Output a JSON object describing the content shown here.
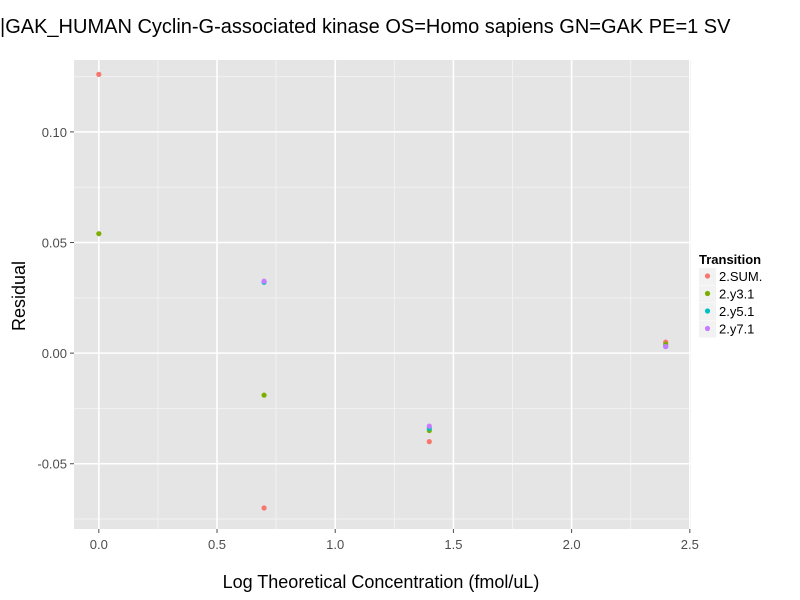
{
  "chart_data": {
    "type": "scatter",
    "title": "|GAK_HUMAN Cyclin-G-associated kinase OS=Homo sapiens GN=GAK PE=1 SV",
    "xlabel": "Log Theoretical Concentration (fmol/uL)",
    "ylabel": "Residual",
    "xlim": [
      -0.105,
      2.505
    ],
    "ylim": [
      -0.0795,
      0.1325
    ],
    "x_ticks": [
      0.0,
      0.5,
      1.0,
      1.5,
      2.0,
      2.5
    ],
    "x_tick_labels": [
      "0.0",
      "0.5",
      "1.0",
      "1.5",
      "2.0",
      "2.5"
    ],
    "y_ticks": [
      -0.05,
      0.0,
      0.05,
      0.1
    ],
    "y_tick_labels": [
      "-0.05",
      "0.00",
      "0.05",
      "0.10"
    ],
    "grid": true,
    "legend": {
      "title": "Transition",
      "placement": "right"
    },
    "series": [
      {
        "name": "2.SUM.",
        "color": "#F8766D",
        "points": [
          {
            "x": 0.0,
            "y": 0.126
          },
          {
            "x": 0.699,
            "y": -0.07
          },
          {
            "x": 1.398,
            "y": -0.04
          },
          {
            "x": 2.398,
            "y": 0.005
          }
        ]
      },
      {
        "name": "2.y3.1",
        "color": "#7CAE00",
        "points": [
          {
            "x": 0.0,
            "y": 0.054
          },
          {
            "x": 0.699,
            "y": -0.019
          },
          {
            "x": 1.398,
            "y": -0.035
          },
          {
            "x": 2.398,
            "y": 0.004
          }
        ]
      },
      {
        "name": "2.y5.1",
        "color": "#00BFC4",
        "points": [
          {
            "x": 0.699,
            "y": 0.032
          },
          {
            "x": 1.398,
            "y": -0.034
          },
          {
            "x": 2.398,
            "y": 0.003
          }
        ]
      },
      {
        "name": "2.y7.1",
        "color": "#C77CFF",
        "points": [
          {
            "x": 0.699,
            "y": 0.0325
          },
          {
            "x": 1.398,
            "y": -0.033
          },
          {
            "x": 2.398,
            "y": 0.003
          }
        ]
      }
    ]
  },
  "colors": {
    "panel_background": "#E5E5E5",
    "grid_major": "#FFFFFF",
    "grid_minor": "#F2F2F2",
    "tick_color": "#4d4d4d"
  }
}
